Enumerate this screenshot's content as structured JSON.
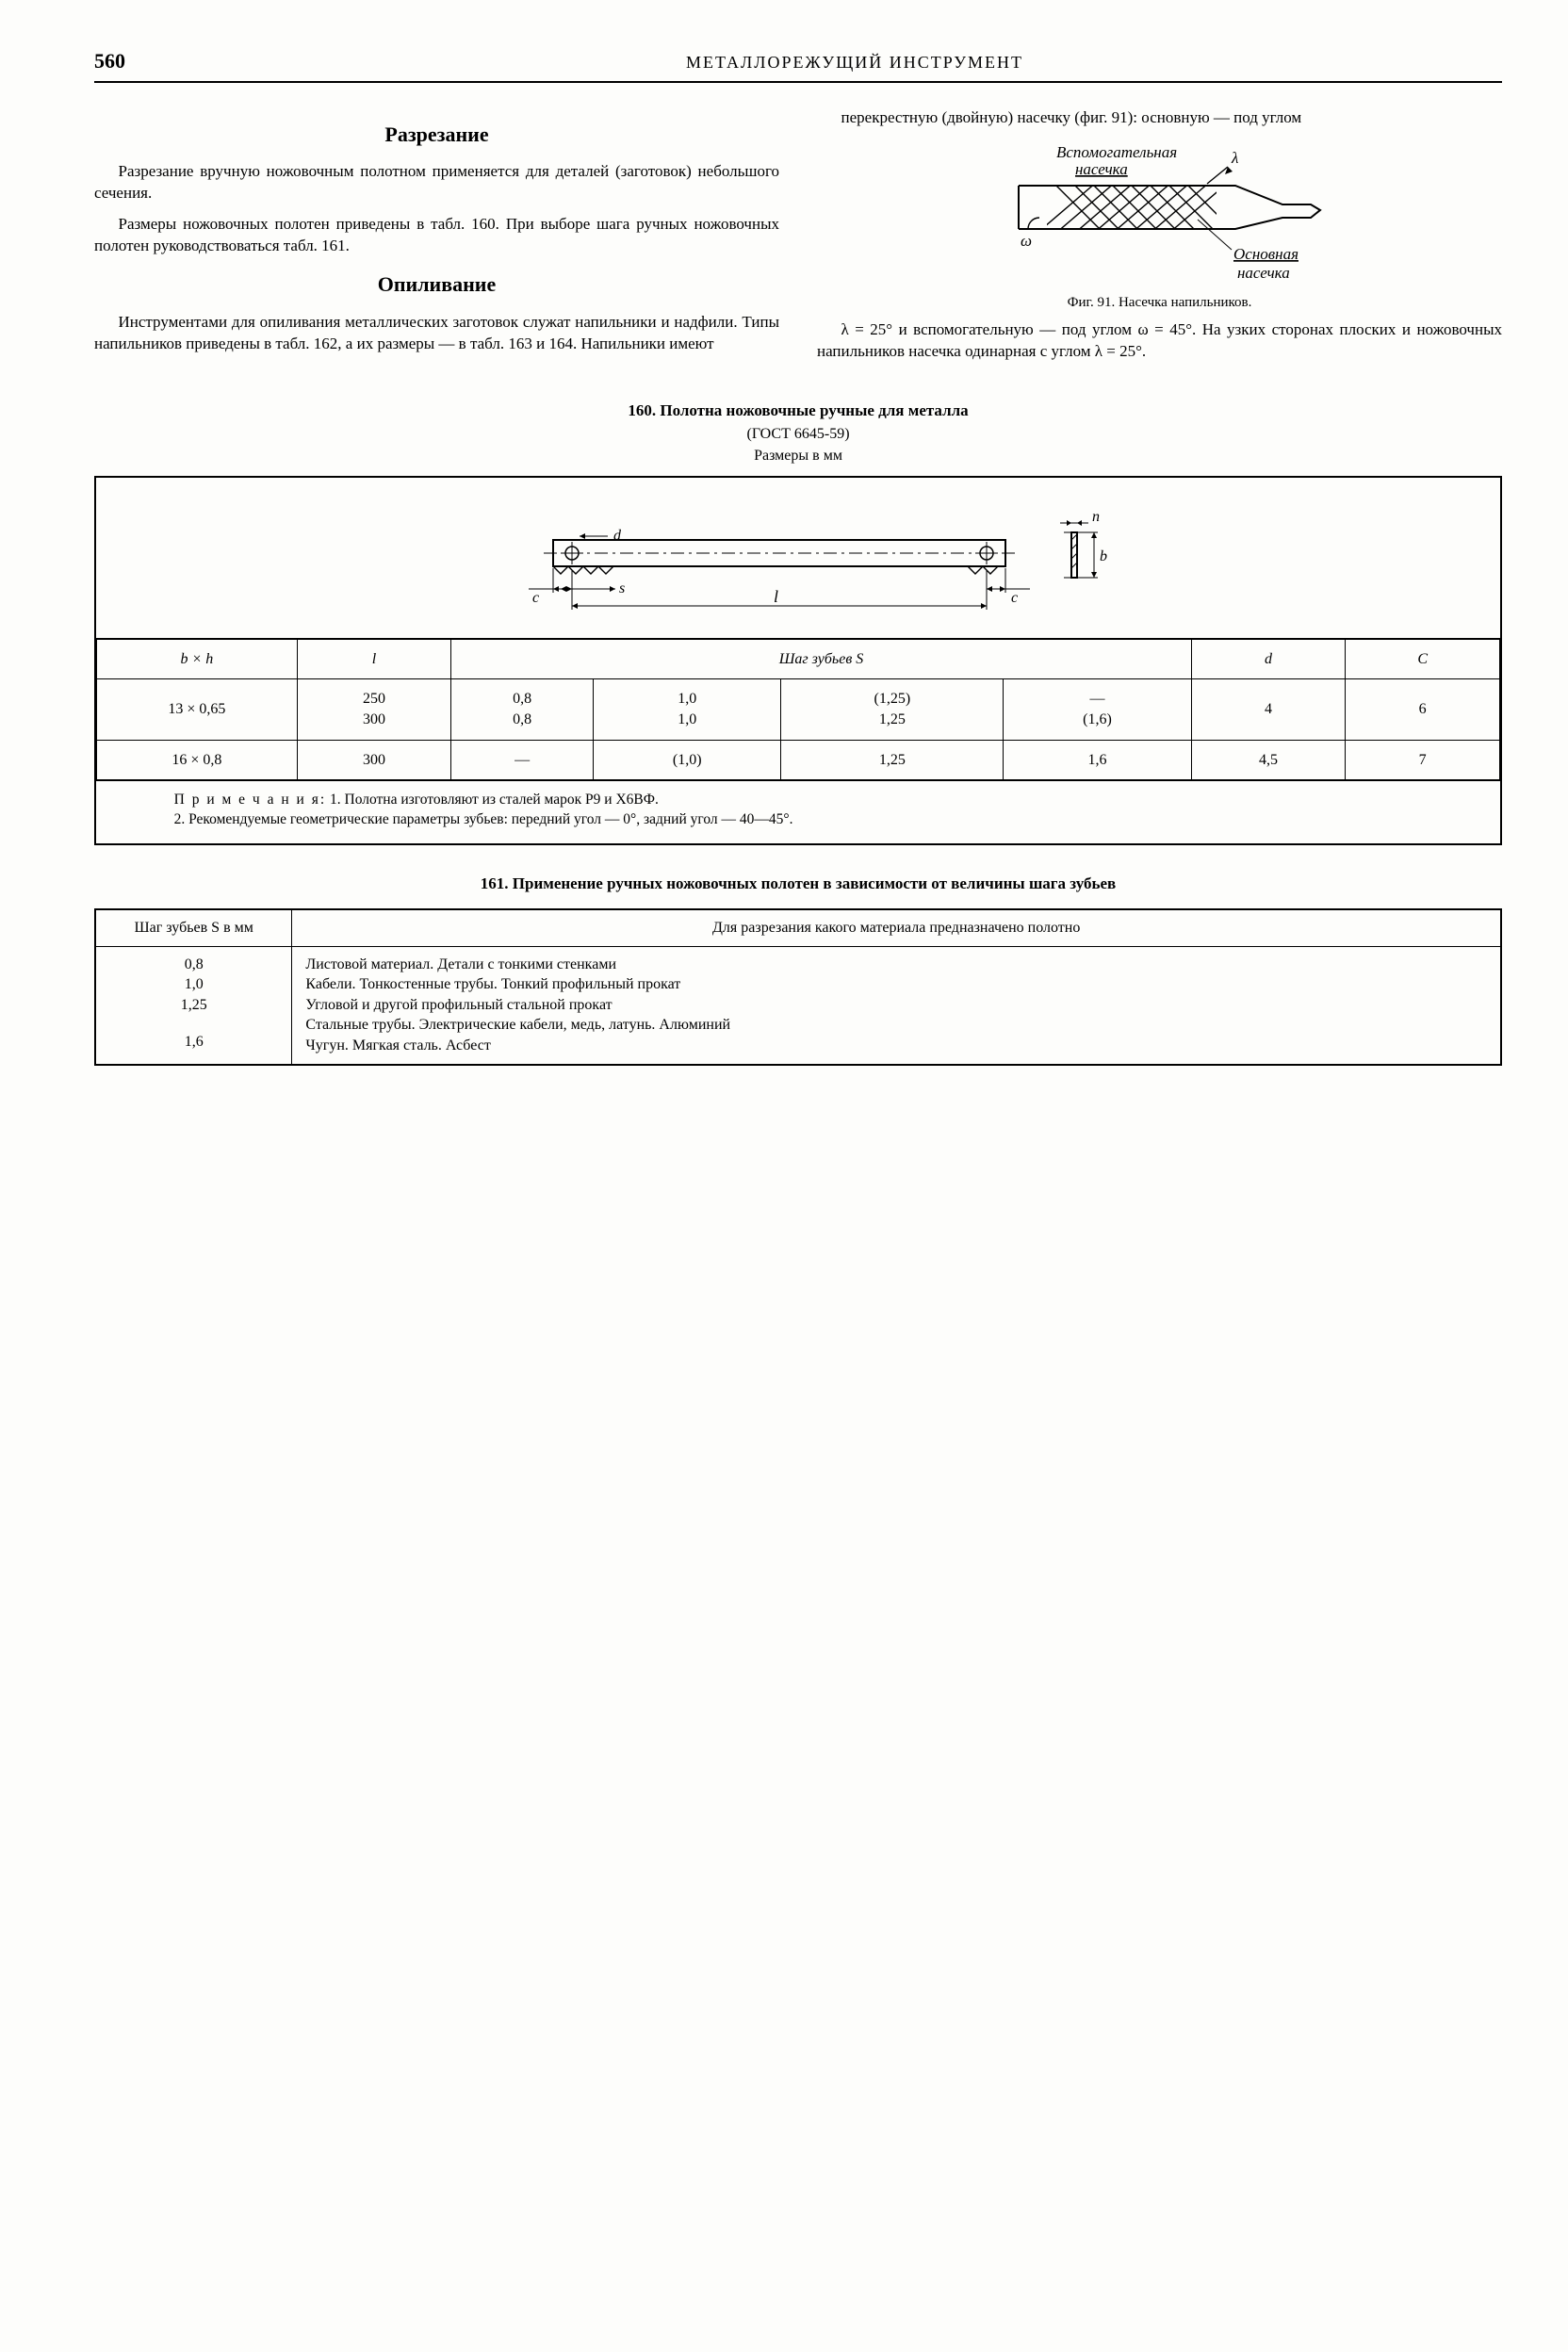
{
  "page_number": "560",
  "running_title": "МЕТАЛЛОРЕЖУЩИЙ ИНСТРУМЕНТ",
  "left_column": {
    "section1_title": "Разрезание",
    "section1_para1": "Разрезание вручную ножовочным по­лотном применяется для деталей (заго­товок) небольшого сечения.",
    "section1_para2": "Размеры ножовочных полотен при­ведены в табл. 160. При выборе шага ручных ножовочных полотен руковод­ствоваться табл. 161.",
    "section2_title": "Опиливание",
    "section2_para1": "Инструментами для опиливания ме­таллических заготовок служат напиль­ники и надфили. Типы напильников приведены в табл. 162, а их размеры — в табл. 163 и 164. Напильники имеют"
  },
  "right_column": {
    "para1": "перекрестную (двойную) насечку (фиг. 91): основную — под углом",
    "fig91": {
      "label_aux": "Вспомогательная",
      "label_aux2": "насечка",
      "label_main": "Основная",
      "label_main2": "насечка",
      "lambda": "λ",
      "omega": "ω",
      "caption": "Фиг. 91. Насечка напильников."
    },
    "para2": "λ = 25° и вспомогательную — под углом ω = 45°. На узких сторонах плоских и ножовочных напильников насечка оди­нарная с углом λ = 25°."
  },
  "table160": {
    "title": "160. Полотна ножовочные ручные для металла",
    "subtitle": "(ГОСТ 6645-59)",
    "units": "Размеры в мм",
    "diagram_labels": {
      "d": "d",
      "n": "n",
      "b": "b",
      "c": "c",
      "l": "l",
      "s": "s"
    },
    "headers": {
      "bxh": "b × h",
      "l": "l",
      "step_span": "Шаг зубьев S",
      "d": "d",
      "c": "C"
    },
    "rows": [
      {
        "bxh": "13 × 0,65",
        "l": "250\n300",
        "s1": "0,8\n0,8",
        "s2": "1,0\n1,0",
        "s3": "(1,25)\n1,25",
        "s4": "—\n(1,6)",
        "d": "4",
        "c": "6"
      },
      {
        "bxh": "16 × 0,8",
        "l": "300",
        "s1": "—",
        "s2": "(1,0)",
        "s3": "1,25",
        "s4": "1,6",
        "d": "4,5",
        "c": "7"
      }
    ],
    "notes_label": "П р и м е ч а н и я:",
    "note1": "1. Полотна изготовляют из сталей марок Р9 и Х6ВФ.",
    "note2": "2. Рекомендуемые геометрические параметры зубьев: передний угол — 0°, задний угол — 40—45°."
  },
  "table161": {
    "title": "161. Применение ручных ножовочных полотен в зависимости от величины шага зубьев",
    "header_step": "Шаг зубьев S в мм",
    "header_desc": "Для разрезания какого материала предназначено полотно",
    "rows": [
      {
        "s": "0,8",
        "desc": "Листовой материал. Детали с тонкими стенками"
      },
      {
        "s": "1,0",
        "desc": "Кабели. Тонкостенные трубы. Тонкий профильный прокат"
      },
      {
        "s": "1,25",
        "desc": "Угловой и другой профильный стальной прокат\nСтальные трубы. Электрические кабели, медь, латунь. Алюминий"
      },
      {
        "s": "1,6",
        "desc": "Чугун. Мягкая сталь. Асбест"
      }
    ]
  },
  "colors": {
    "text": "#000000",
    "page_bg": "#fdfdfb",
    "rule": "#000000"
  }
}
